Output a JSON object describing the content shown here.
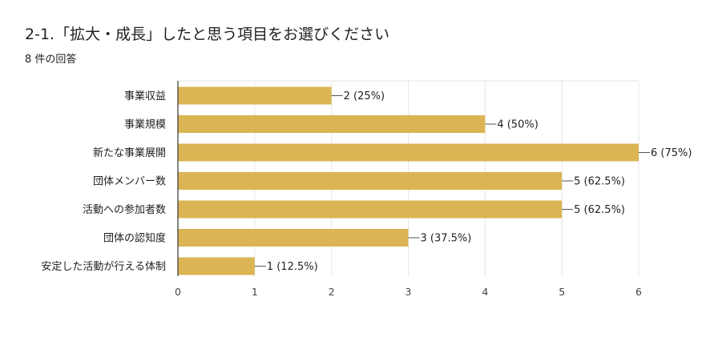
{
  "question": {
    "title": "2-1.「拡大・成長」したと思う項目をお選びください",
    "response_count": "8 件の回答"
  },
  "colors": {
    "bar": "#dbb553",
    "grid": "#e6e6e6",
    "axis": "#333333"
  },
  "chart_data": {
    "type": "bar",
    "orientation": "horizontal",
    "categories": [
      "事業収益",
      "事業規模",
      "新たな事業展開",
      "団体メンバー数",
      "活動への参加者数",
      "団体の認知度",
      "安定した活動が行える体制"
    ],
    "values": [
      2,
      4,
      6,
      5,
      5,
      3,
      1
    ],
    "value_labels": [
      "2 (25%)",
      "4 (50%)",
      "6 (75%)",
      "5 (62.5%)",
      "5 (62.5%)",
      "3 (37.5%)",
      "1 (12.5%)"
    ],
    "xlim": [
      0,
      6
    ],
    "xticks": [
      "0",
      "1",
      "2",
      "3",
      "4",
      "5",
      "6"
    ],
    "grid": true,
    "legend": "none"
  }
}
